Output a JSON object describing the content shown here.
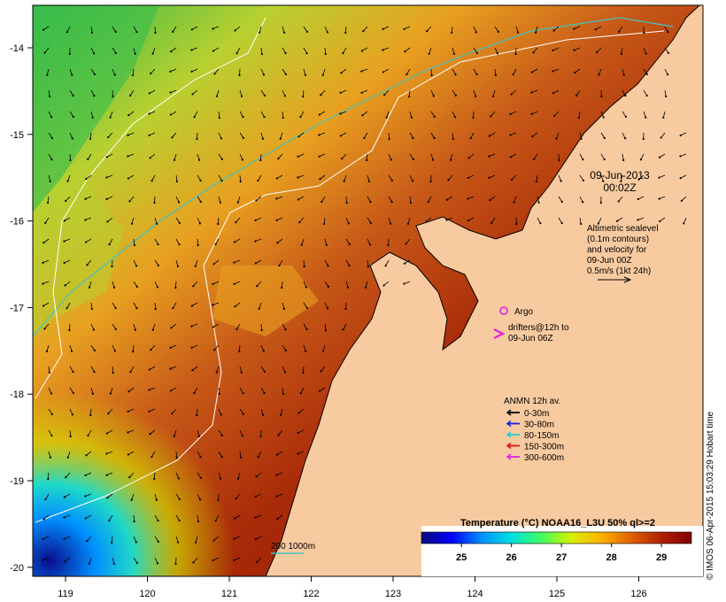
{
  "map": {
    "lon_ticks": [
      "119",
      "120",
      "121",
      "122",
      "123",
      "124",
      "125",
      "126"
    ],
    "lat_ticks": [
      "-14",
      "-15",
      "-16",
      "-17",
      "-18",
      "-19",
      "-20"
    ],
    "colors": {
      "land": "#f8caa0",
      "sst_cold": "#0a0d8c",
      "sst_warm": "#8c1200",
      "shelf_contour": "#3fc4c4",
      "sealevel_contour": "#ffffff",
      "argo": "#e020e0",
      "drifter": "#e020e0"
    }
  },
  "timestamp": {
    "date": "09-Jun-2013",
    "time": "00:02Z"
  },
  "altimetry": {
    "lines": [
      "Altimetric sealevel",
      "(0.1m contours)",
      "and velocity for",
      "09-Jun 00Z",
      "0.5m/s (1kt 24h)"
    ],
    "scale_arrow_icon": "arrow-right-icon"
  },
  "argo": {
    "label": "Argo",
    "icon": "circle-icon"
  },
  "drifters": {
    "lines": [
      "drifters@12h to",
      "09-Jun 06Z"
    ],
    "icon": "chevron-right-icon"
  },
  "anmn": {
    "title": "ANMN 12h av.",
    "items": [
      {
        "label": "0-30m",
        "color": "#000000"
      },
      {
        "label": "30-80m",
        "color": "#1020e0"
      },
      {
        "label": "80-150m",
        "color": "#20d0d0"
      },
      {
        "label": "150-300m",
        "color": "#e01010"
      },
      {
        "label": "300-600m",
        "color": "#e020e0"
      }
    ]
  },
  "depth_legend": {
    "label": "200 1000m"
  },
  "colorbar": {
    "title": "Temperature (°C) NOAA16_L3U 50% ql>=2",
    "ticks": [
      "25",
      "26",
      "27",
      "28",
      "29"
    ],
    "range": [
      24.2,
      29.6
    ],
    "stops": [
      "#0a0a7a",
      "#0000ff",
      "#0090ff",
      "#00e0e0",
      "#40ff60",
      "#d8f000",
      "#ffb000",
      "#e06000",
      "#b02000",
      "#800000"
    ]
  },
  "credit": "© IMOS 06-Apr-2015 15:03:29 Hobart time"
}
